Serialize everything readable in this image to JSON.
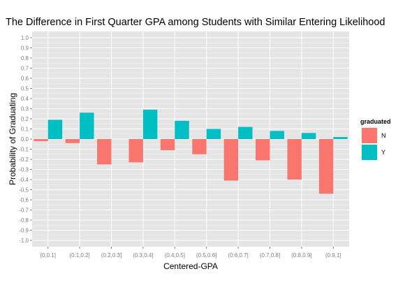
{
  "chart_data": {
    "type": "bar",
    "title": "The Difference in First Quarter GPA among Students with Similar Entering Likelihood",
    "xlabel": "Centered-GPA",
    "ylabel": "Probability of Graduating",
    "categories": [
      "(0,0.1]",
      "(0.1,0.2]",
      "(0.2,0.3]",
      "(0.3,0.4]",
      "(0.4,0.5]",
      "(0.5,0.6]",
      "(0.6,0.7]",
      "(0.7,0.8]",
      "(0.8,0.9]",
      "(0.9,1]"
    ],
    "series": [
      {
        "name": "N",
        "color": "#F8766D",
        "values": [
          -0.02,
          -0.04,
          -0.25,
          -0.23,
          -0.11,
          -0.15,
          -0.41,
          -0.21,
          -0.4,
          -0.54
        ]
      },
      {
        "name": "Y",
        "color": "#00BFC4",
        "values": [
          0.19,
          0.26,
          null,
          0.29,
          0.18,
          0.1,
          0.12,
          0.08,
          0.06,
          0.02
        ]
      }
    ],
    "ylim": [
      -1.1,
      1.1
    ],
    "yticks": [
      "-1.0",
      "-0.9",
      "-0.8",
      "-0.7",
      "-0.6",
      "-0.5",
      "-0.4",
      "-0.3",
      "-0.2",
      "-0.1",
      "0.0",
      "0.1",
      "0.2",
      "0.3",
      "0.4",
      "0.5",
      "0.6",
      "0.7",
      "0.8",
      "0.9",
      "1.0"
    ],
    "legend": {
      "title": "graduated",
      "position": "right"
    },
    "grid": true,
    "panel_color": "#E5E5E5"
  }
}
